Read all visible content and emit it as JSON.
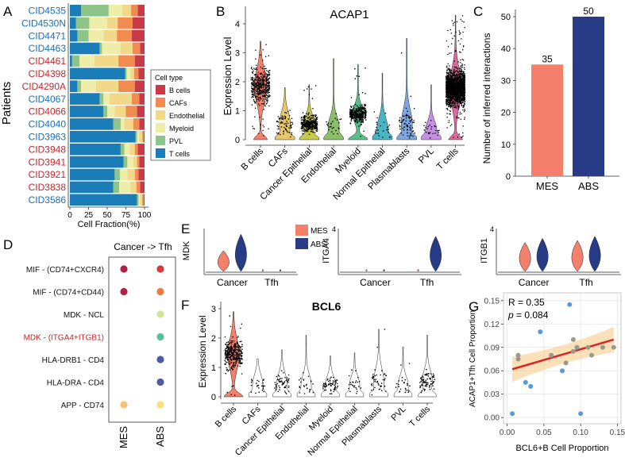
{
  "panel_letters": {
    "A": "A",
    "B": "B",
    "C": "C",
    "D": "D",
    "E": "E",
    "F": "F",
    "G": "G"
  },
  "colors": {
    "B cells": "#C93A48",
    "CAFs": "#F28B50",
    "Endothelial": "#F2D98A",
    "Myeloid": "#EEEEA8",
    "PVL": "#8CC48A",
    "T cells": "#1A7DB8",
    "red_label": "#C4262E",
    "blue_label": "#1A6FB0",
    "MES": "#F47F6B",
    "ABS": "#283B86",
    "fit": "#D62728",
    "ci": "#F7C97F",
    "pt": "#5B9BD5"
  },
  "chart_data": [
    {
      "id": "A",
      "type": "bar",
      "orientation": "horizontal",
      "stacked": true,
      "ylabel": "Patients",
      "xlabel": "Cell Fraction(%)",
      "x_ticks": [
        "0",
        "25",
        "50",
        "75",
        "100"
      ],
      "xlim": [
        0,
        100
      ],
      "categories": [
        "CID4535",
        "CID4530N",
        "CID4471",
        "CID4463",
        "CID4461",
        "CID4398",
        "CID4290A",
        "CID4067",
        "CID4066",
        "CID4040",
        "CID3963",
        "CID3948",
        "CID3941",
        "CID3921",
        "CID3838",
        "CID3586"
      ],
      "category_label_colors": [
        "blue",
        "blue",
        "blue",
        "blue",
        "red",
        "red",
        "red",
        "blue",
        "red",
        "blue",
        "blue",
        "red",
        "red",
        "red",
        "red",
        "blue"
      ],
      "legend_title": "Cell type",
      "legend": [
        "B cells",
        "CAFs",
        "Endothelial",
        "Myeloid",
        "PVL",
        "T cells"
      ],
      "series": [
        {
          "name": "T cells",
          "values": [
            15,
            8,
            10,
            40,
            3,
            74,
            10,
            40,
            45,
            58,
            88,
            68,
            72,
            60,
            58,
            90
          ]
        },
        {
          "name": "PVL",
          "values": [
            37,
            18,
            15,
            3,
            10,
            2,
            5,
            5,
            5,
            10,
            2,
            5,
            5,
            7,
            8,
            2
          ]
        },
        {
          "name": "Myeloid",
          "values": [
            18,
            24,
            20,
            25,
            20,
            5,
            20,
            8,
            10,
            5,
            3,
            7,
            8,
            10,
            15,
            2
          ]
        },
        {
          "name": "Endothelial",
          "values": [
            12,
            14,
            18,
            16,
            32,
            5,
            30,
            30,
            15,
            12,
            4,
            7,
            5,
            10,
            8,
            3
          ]
        },
        {
          "name": "CAFs",
          "values": [
            9,
            20,
            20,
            10,
            22,
            6,
            22,
            10,
            15,
            8,
            2,
            4,
            3,
            5,
            5,
            2
          ]
        },
        {
          "name": "B cells",
          "values": [
            9,
            16,
            17,
            6,
            13,
            8,
            13,
            7,
            10,
            7,
            1,
            9,
            7,
            8,
            6,
            1
          ]
        }
      ]
    },
    {
      "id": "B",
      "type": "violin",
      "title": "ACAP1",
      "ylabel": "Expression Level",
      "y_ticks": [
        "0",
        "1",
        "2",
        "3",
        "4"
      ],
      "ylim": [
        0,
        4.4
      ],
      "categories": [
        "B cells",
        "CAFs",
        "Cancer Epithelial",
        "Endothelial",
        "Myeloid",
        "Normal Epithelial",
        "Plasmablasts",
        "PVL",
        "T cells"
      ],
      "bulk_center": [
        1.85,
        0.55,
        0.55,
        0.45,
        0.9,
        0.35,
        0.55,
        0.35,
        1.8
      ],
      "bulk_spread": [
        0.55,
        0.4,
        0.3,
        0.35,
        0.3,
        0.4,
        0.5,
        0.3,
        0.6
      ],
      "points": [
        500,
        70,
        300,
        25,
        350,
        25,
        70,
        25,
        2000
      ],
      "max_expr": [
        3.4,
        1.8,
        1.9,
        2.8,
        2.6,
        2.3,
        3.5,
        1.9,
        4.3
      ]
    },
    {
      "id": "C",
      "type": "bar",
      "ylabel": "Number of inferred interactions",
      "categories": [
        "MES",
        "ABS"
      ],
      "values": [
        35,
        50
      ],
      "value_labels": [
        "35",
        "50"
      ],
      "y_ticks": [
        "0",
        "10",
        "20",
        "30",
        "40",
        "50"
      ],
      "ylim": [
        0,
        53
      ]
    },
    {
      "id": "D",
      "type": "scatter",
      "title": "Cancer -> Tfh",
      "rows": [
        "MIF - (CD74+CXCR4)",
        "MIF - (CD74+CD44)",
        "MDK - NCL",
        "MDK - (ITGA4+ITGB1)",
        "HLA-DRB1 - CD4",
        "HLA-DRA - CD4",
        "APP - CD74"
      ],
      "columns": [
        "MES",
        "ABS"
      ],
      "dots": [
        {
          "row": 0,
          "col": 0,
          "color": "#B0224A"
        },
        {
          "row": 0,
          "col": 1,
          "color": "#D83A38"
        },
        {
          "row": 1,
          "col": 0,
          "color": "#B0224A"
        },
        {
          "row": 1,
          "col": 1,
          "color": "#F07A3A"
        },
        {
          "row": 2,
          "col": 1,
          "color": "#D3E39A"
        },
        {
          "row": 3,
          "col": 1,
          "color": "#5CBF9A"
        },
        {
          "row": 4,
          "col": 1,
          "color": "#4F5AA8"
        },
        {
          "row": 5,
          "col": 1,
          "color": "#4F5AA8"
        },
        {
          "row": 6,
          "col": 0,
          "color": "#F6C27A"
        },
        {
          "row": 6,
          "col": 1,
          "color": "#FBE07A"
        }
      ],
      "highlight_row": 3
    },
    {
      "id": "E",
      "type": "violin",
      "legend": [
        "MES",
        "ABS"
      ],
      "panels": [
        {
          "ylabel": "MDK",
          "ytick": "",
          "groups": [
            "Cancer",
            "Tfh"
          ],
          "mes_h": [
            0.5,
            0.05
          ],
          "abs_h": [
            0.9,
            0.05
          ]
        },
        {
          "ylabel": "ITGA4",
          "ytick": "4",
          "groups": [
            "Cancer",
            "Tfh"
          ],
          "mes_h": [
            0.05,
            0.05
          ],
          "abs_h": [
            0.05,
            0.85
          ]
        },
        {
          "ylabel": "ITGB1",
          "ytick": "4",
          "groups": [
            "Cancer",
            "Tfh"
          ],
          "mes_h": [
            0.7,
            0.75
          ],
          "abs_h": [
            0.8,
            0.85
          ]
        }
      ]
    },
    {
      "id": "F",
      "type": "violin",
      "title": "BCL6",
      "ylabel": "Expression Level",
      "y_ticks": [
        "0",
        "1",
        "2",
        "3"
      ],
      "ylim": [
        0,
        3.2
      ],
      "categories": [
        "B cells",
        "CAFs",
        "Cancer Epithelial",
        "Endothelial",
        "Myeloid",
        "Normal Epithelial",
        "Plasmablasts",
        "PVL",
        "T cells"
      ],
      "bulk_center": [
        1.45,
        0.4,
        0.45,
        0.4,
        0.4,
        0.4,
        0.5,
        0.4,
        0.55
      ],
      "bulk_spread": [
        0.5,
        0.35,
        0.35,
        0.35,
        0.3,
        0.3,
        0.45,
        0.3,
        0.35
      ],
      "points": [
        350,
        25,
        60,
        25,
        60,
        25,
        45,
        25,
        80
      ],
      "max_expr": [
        2.9,
        1.3,
        1.6,
        2.1,
        1.4,
        1.5,
        2.3,
        1.7,
        2.1
      ]
    },
    {
      "id": "G",
      "type": "scatter",
      "xlabel": "BCL6+B Cell Proportion",
      "ylabel": "ACAP1+Tfh Cell Proportion",
      "x_ticks": [
        "0.00",
        "0.05",
        "0.10",
        "0.15"
      ],
      "y_ticks": [
        "0.00",
        "0.03",
        "0.06",
        "0.09",
        "0.12",
        "0.15"
      ],
      "xlim": [
        -0.005,
        0.155
      ],
      "ylim": [
        -0.008,
        0.16
      ],
      "annotation_r": "R = 0.35",
      "annotation_p_label": "p",
      "annotation_p_value": " = 0.084",
      "x": [
        0.007,
        0.015,
        0.025,
        0.032,
        0.045,
        0.06,
        0.075,
        0.08,
        0.085,
        0.09,
        0.095,
        0.1,
        0.11,
        0.115,
        0.13,
        0.145,
        0.015,
        0.09
      ],
      "y": [
        0.005,
        0.08,
        0.045,
        0.04,
        0.11,
        0.08,
        0.06,
        0.07,
        0.145,
        0.085,
        0.09,
        0.005,
        0.09,
        0.08,
        0.09,
        0.09,
        0.075,
        0.1
      ],
      "fit_line": [
        [
          0.007,
          0.062
        ],
        [
          0.145,
          0.1
        ]
      ]
    }
  ]
}
